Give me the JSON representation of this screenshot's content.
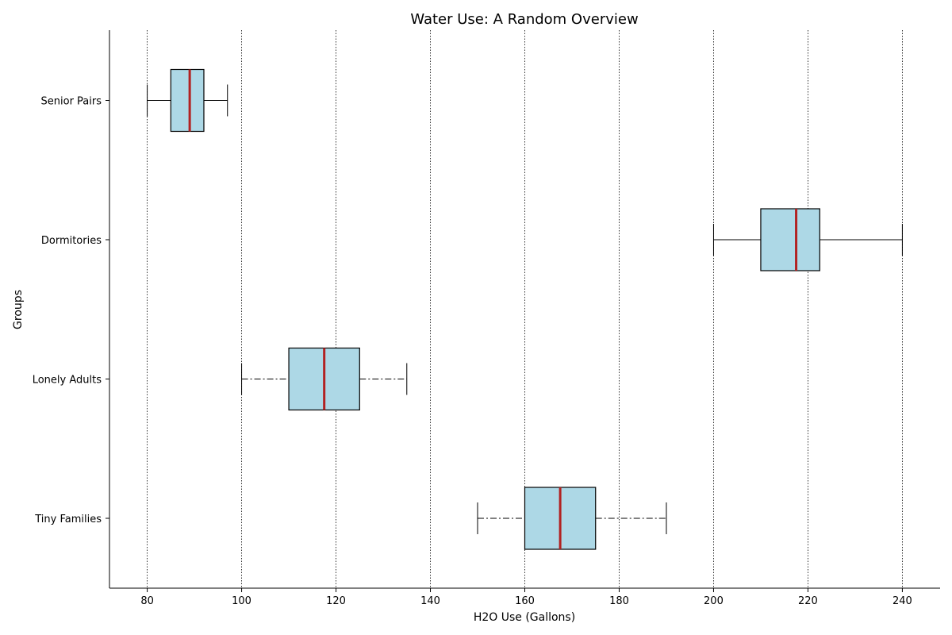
{
  "chart_data": {
    "type": "boxplot",
    "orientation": "horizontal",
    "title": "Water Use: A Random Overview",
    "xlabel": "H2O Use (Gallons)",
    "ylabel": "Groups",
    "xlim": [
      72,
      248
    ],
    "xticks": [
      80,
      100,
      120,
      140,
      160,
      180,
      200,
      220,
      240
    ],
    "grid": "vertical dotted",
    "colors": {
      "box_fill": "#add8e6",
      "median": "#b22222",
      "lines": "#000000"
    },
    "categories": [
      "Tiny Families",
      "Lonely Adults",
      "Dormitories",
      "Senior Pairs"
    ],
    "boxes": [
      {
        "label": "Tiny Families",
        "whisker_low": 150,
        "q1": 160,
        "median": 167.5,
        "q3": 175,
        "whisker_high": 190,
        "whisker_style": "dashdot"
      },
      {
        "label": "Lonely Adults",
        "whisker_low": 100,
        "q1": 110,
        "median": 117.5,
        "q3": 125,
        "whisker_high": 135,
        "whisker_style": "dashdot"
      },
      {
        "label": "Dormitories",
        "whisker_low": 200,
        "q1": 210,
        "median": 217.5,
        "q3": 222.5,
        "whisker_high": 240,
        "whisker_style": "solid"
      },
      {
        "label": "Senior Pairs",
        "whisker_low": 80,
        "q1": 85,
        "median": 89,
        "q3": 92,
        "whisker_high": 97,
        "whisker_style": "solid"
      }
    ]
  }
}
